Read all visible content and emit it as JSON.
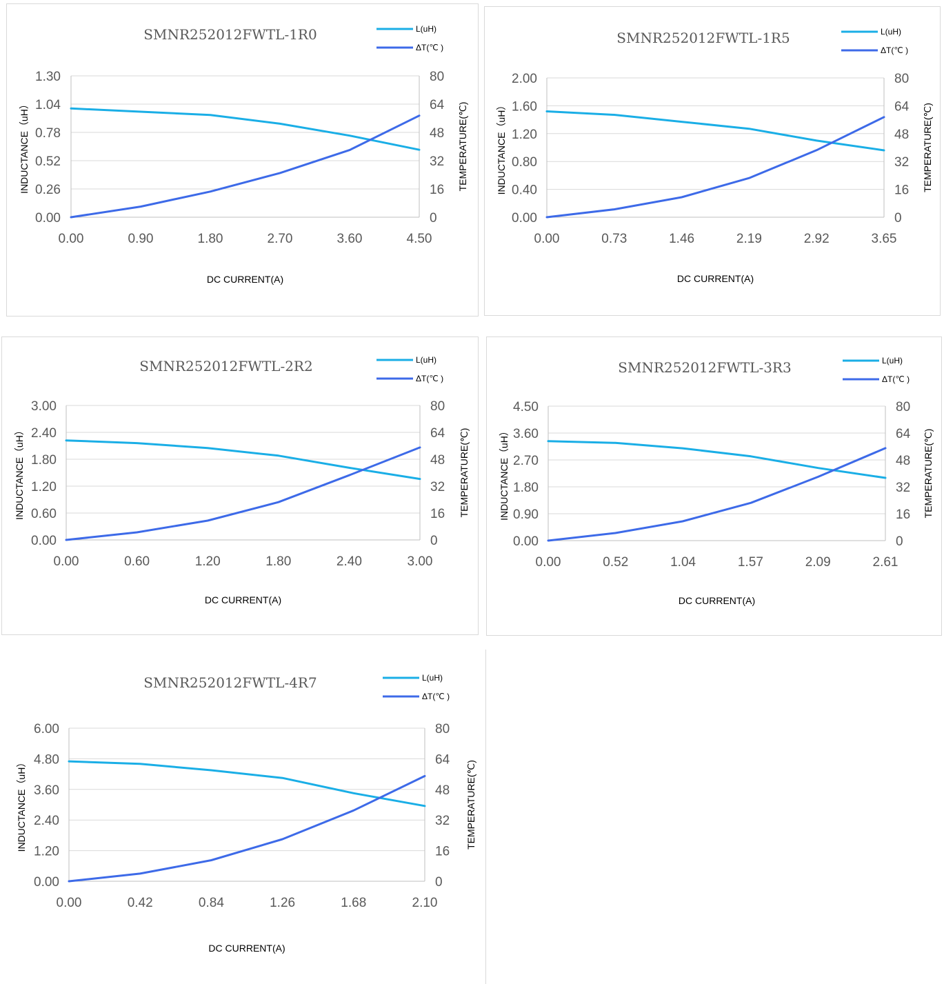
{
  "colors": {
    "inductance": "#1aaee6",
    "temperature": "#3d6ae8"
  },
  "chart_data": [
    {
      "type": "line",
      "title": "SMNR252012FWTL-1R0",
      "xlabel": "DC CURRENT(A)",
      "ylabel": "INDUCTANCE（uH）",
      "y2label": "TEMPERATURE(℃)",
      "x_ticks": [
        "0.00",
        "0.90",
        "1.80",
        "2.70",
        "3.60",
        "4.50"
      ],
      "y_ticks": [
        "0.00",
        "0.26",
        "0.52",
        "0.78",
        "1.04",
        "1.30"
      ],
      "y2_ticks": [
        "0",
        "16",
        "32",
        "48",
        "64",
        "80"
      ],
      "xlim": [
        0,
        4.5
      ],
      "ylim": [
        0,
        1.3
      ],
      "y2lim": [
        0,
        80
      ],
      "legend": "top-right",
      "series": [
        {
          "name": "L(uH)",
          "axis": "left",
          "x": [
            0,
            0.9,
            1.8,
            2.7,
            3.6,
            4.5
          ],
          "values": [
            1.0,
            0.97,
            0.94,
            0.86,
            0.75,
            0.62
          ]
        },
        {
          "name": "ΔT(℃ )",
          "axis": "right",
          "x": [
            0,
            0.9,
            1.8,
            2.7,
            3.6,
            4.5
          ],
          "values": [
            0,
            6,
            14.5,
            25,
            38,
            57.5
          ]
        }
      ]
    },
    {
      "type": "line",
      "title": "SMNR252012FWTL-1R5",
      "xlabel": "DC CURRENT(A)",
      "ylabel": "INDUCTANCE（uH）",
      "y2label": "TEMPERATURE(℃)",
      "x_ticks": [
        "0.00",
        "0.73",
        "1.46",
        "2.19",
        "2.92",
        "3.65"
      ],
      "y_ticks": [
        "0.00",
        "0.40",
        "0.80",
        "1.20",
        "1.60",
        "2.00"
      ],
      "y2_ticks": [
        "0",
        "16",
        "32",
        "48",
        "64",
        "80"
      ],
      "xlim": [
        0,
        3.65
      ],
      "ylim": [
        0,
        2.0
      ],
      "y2lim": [
        0,
        80
      ],
      "legend": "top-right",
      "series": [
        {
          "name": "L(uH)",
          "axis": "left",
          "x": [
            0,
            0.73,
            1.46,
            2.19,
            2.92,
            3.65
          ],
          "values": [
            1.52,
            1.47,
            1.37,
            1.27,
            1.1,
            0.96
          ]
        },
        {
          "name": "ΔT(℃ )",
          "axis": "right",
          "x": [
            0,
            0.73,
            1.46,
            2.19,
            2.92,
            3.65
          ],
          "values": [
            0,
            4.5,
            11.5,
            22.5,
            38.5,
            57.5
          ]
        }
      ]
    },
    {
      "type": "line",
      "title": "SMNR252012FWTL-2R2",
      "xlabel": "DC CURRENT(A)",
      "ylabel": "INDUCTANCE（uH）",
      "y2label": "TEMPERATURE(℃)",
      "x_ticks": [
        "0.00",
        "0.60",
        "1.20",
        "1.80",
        "2.40",
        "3.00"
      ],
      "y_ticks": [
        "0.00",
        "0.60",
        "1.20",
        "1.80",
        "2.40",
        "3.00"
      ],
      "y2_ticks": [
        "0",
        "16",
        "32",
        "48",
        "64",
        "80"
      ],
      "xlim": [
        0,
        3.0
      ],
      "ylim": [
        0,
        3.0
      ],
      "y2lim": [
        0,
        80
      ],
      "legend": "top-right",
      "series": [
        {
          "name": "L(uH)",
          "axis": "left",
          "x": [
            0,
            0.6,
            1.2,
            1.8,
            2.4,
            3.0
          ],
          "values": [
            2.22,
            2.16,
            2.05,
            1.88,
            1.61,
            1.36
          ]
        },
        {
          "name": "ΔT(℃ )",
          "axis": "right",
          "x": [
            0,
            0.6,
            1.2,
            1.8,
            2.4,
            3.0
          ],
          "values": [
            0,
            4.5,
            11.5,
            22.5,
            38.5,
            55
          ]
        }
      ]
    },
    {
      "type": "line",
      "title": "SMNR252012FWTL-3R3",
      "xlabel": "DC CURRENT(A)",
      "ylabel": "INDUCTANCE（uH）",
      "y2label": "TEMPERATURE(℃)",
      "x_ticks": [
        "0.00",
        "0.52",
        "1.04",
        "1.57",
        "2.09",
        "2.61"
      ],
      "y_ticks": [
        "0.00",
        "0.90",
        "1.80",
        "2.70",
        "3.60",
        "4.50"
      ],
      "y2_ticks": [
        "0",
        "16",
        "32",
        "48",
        "64",
        "80"
      ],
      "xlim": [
        0,
        2.61
      ],
      "ylim": [
        0,
        4.5
      ],
      "y2lim": [
        0,
        80
      ],
      "legend": "top-right",
      "series": [
        {
          "name": "L(uH)",
          "axis": "left",
          "x": [
            0,
            0.52,
            1.04,
            1.57,
            2.09,
            2.61
          ],
          "values": [
            3.33,
            3.27,
            3.09,
            2.82,
            2.43,
            2.1
          ]
        },
        {
          "name": "ΔT(℃ )",
          "axis": "right",
          "x": [
            0,
            0.52,
            1.04,
            1.57,
            2.09,
            2.61
          ],
          "values": [
            0,
            4.5,
            11.5,
            22.5,
            38,
            55
          ]
        }
      ]
    },
    {
      "type": "line",
      "title": "SMNR252012FWTL-4R7",
      "xlabel": "DC CURRENT(A)",
      "ylabel": "INDUCTANCE（uH）",
      "y2label": "TEMPERATURE(℃)",
      "x_ticks": [
        "0.00",
        "0.42",
        "0.84",
        "1.26",
        "1.68",
        "2.10"
      ],
      "y_ticks": [
        "0.00",
        "1.20",
        "2.40",
        "3.60",
        "4.80",
        "6.00"
      ],
      "y2_ticks": [
        "0",
        "16",
        "32",
        "48",
        "64",
        "80"
      ],
      "xlim": [
        0,
        2.1
      ],
      "ylim": [
        0,
        6.0
      ],
      "y2lim": [
        0,
        80
      ],
      "legend": "top-right",
      "series": [
        {
          "name": "L(uH)",
          "axis": "left",
          "x": [
            0,
            0.42,
            0.84,
            1.26,
            1.68,
            2.1
          ],
          "values": [
            4.7,
            4.6,
            4.35,
            4.05,
            3.45,
            2.95
          ]
        },
        {
          "name": "ΔT(℃ )",
          "axis": "right",
          "x": [
            0,
            0.42,
            0.84,
            1.26,
            1.68,
            2.1
          ],
          "values": [
            0,
            4,
            11,
            22,
            37,
            55
          ]
        }
      ]
    }
  ]
}
